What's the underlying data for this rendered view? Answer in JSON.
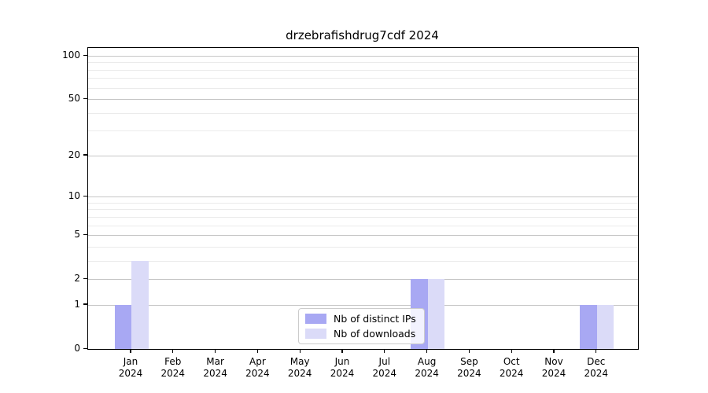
{
  "chart_data": {
    "type": "bar",
    "title": "drzebrafishdrug7cdf 2024",
    "year_label": "2024",
    "categories": [
      "Jan",
      "Feb",
      "Mar",
      "Apr",
      "May",
      "Jun",
      "Jul",
      "Aug",
      "Sep",
      "Oct",
      "Nov",
      "Dec"
    ],
    "series": [
      {
        "name": "Nb of distinct IPs",
        "color": "#a8a8f3",
        "values": [
          1,
          0,
          0,
          0,
          0,
          0,
          0,
          2,
          0,
          0,
          0,
          1
        ]
      },
      {
        "name": "Nb of downloads",
        "color": "#dbdbf8",
        "values": [
          3,
          0,
          0,
          0,
          0,
          0,
          0,
          2,
          0,
          0,
          0,
          1
        ]
      }
    ],
    "xlabel": "",
    "ylabel": "",
    "ylim": [
      0,
      100
    ],
    "y_scale": "log10(value+1)",
    "y_tick_labels": [
      "100",
      "50",
      "20",
      "10",
      "5",
      "2",
      "1",
      "0"
    ],
    "y_tick_values": [
      100,
      50,
      20,
      10,
      5,
      2,
      1,
      0
    ],
    "y_minor_gridlines": [
      90,
      80,
      70,
      60,
      40,
      30,
      9,
      8,
      7,
      6,
      4,
      3
    ],
    "grid": "horizontal-only",
    "legend_position": "lower-center-inside",
    "colors": {
      "distinct_ips": "#a8a8f3",
      "downloads": "#dbdbf8",
      "major_grid": "#c6c6c6",
      "minor_grid": "#ebebeb",
      "axis": "#000000",
      "background": "#ffffff"
    }
  }
}
